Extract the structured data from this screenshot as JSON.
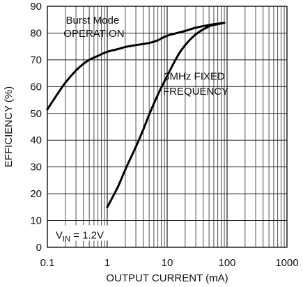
{
  "chart_data": {
    "type": "line",
    "xlabel": "OUTPUT CURRENT (mA)",
    "ylabel": "EFFICIENCY (%)",
    "x_scale": "log",
    "xlim": [
      0.1,
      1000
    ],
    "ylim": [
      0,
      90
    ],
    "x_ticks": [
      0.1,
      1,
      10,
      100,
      1000
    ],
    "x_tick_labels": [
      "0.1",
      "1",
      "10",
      "100",
      "1000"
    ],
    "y_ticks": [
      0,
      10,
      20,
      30,
      40,
      50,
      60,
      70,
      80,
      90
    ],
    "y_tick_labels": [
      "0",
      "10",
      "20",
      "30",
      "40",
      "50",
      "60",
      "70",
      "80",
      "90"
    ],
    "grid": true,
    "legend": "none",
    "series": [
      {
        "name": "Burst Mode OPERATION",
        "x": [
          0.1,
          0.15,
          0.2,
          0.3,
          0.4,
          0.5,
          0.7,
          1,
          1.5,
          2,
          3,
          5,
          7,
          10,
          20,
          30,
          50,
          70,
          90
        ],
        "y": [
          51.5,
          57.5,
          61.5,
          66,
          68.5,
          70,
          71.5,
          73,
          74,
          74.8,
          75.5,
          76.3,
          77.3,
          79,
          80.8,
          82,
          83,
          83.5,
          83.8
        ]
      },
      {
        "name": "3MHz FIXED FREQUENCY",
        "x": [
          1,
          1.5,
          2,
          3,
          4,
          5,
          7,
          10,
          15,
          20,
          30,
          50,
          70,
          90
        ],
        "y": [
          15,
          22.5,
          29,
          37.5,
          44,
          49.5,
          57,
          64,
          71.5,
          75.5,
          79.5,
          82.5,
          83.3,
          83.8
        ]
      }
    ],
    "annotations": [
      {
        "lines": [
          "Burst Mode",
          "OPERATION"
        ]
      },
      {
        "lines": [
          "3MHz FIXED",
          "FREQUENCY"
        ]
      },
      {
        "prefix": "V",
        "sub": "IN",
        "suffix": " = 1.2V"
      }
    ]
  }
}
